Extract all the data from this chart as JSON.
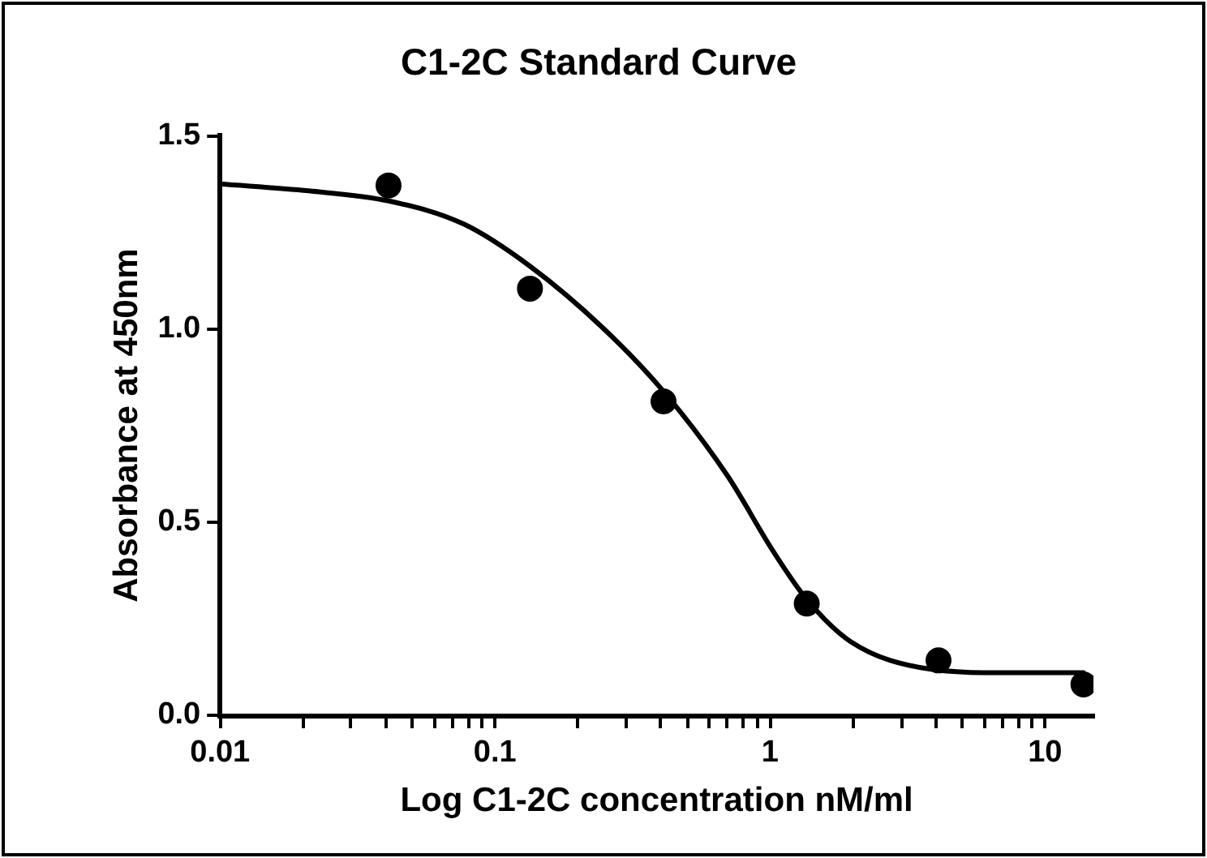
{
  "chart_data": {
    "type": "scatter",
    "title": "C1-2C Standard Curve",
    "xlabel": "Log C1-2C concentration nM/ml",
    "ylabel": "Absorbance at 450nm",
    "log": "x",
    "grid": false,
    "legend": false,
    "xlim": [
      0.01,
      15
    ],
    "xticks": [
      0.01,
      {
        "value": 0.02,
        "label": null
      },
      {
        "value": 0.03,
        "label": null
      },
      {
        "value": 0.04,
        "label": null
      },
      {
        "value": 0.05,
        "label": null
      },
      {
        "value": 0.06,
        "label": null
      },
      {
        "value": 0.07,
        "label": null
      },
      {
        "value": 0.08,
        "label": null
      },
      {
        "value": 0.09,
        "label": null
      },
      0.1,
      {
        "value": 0.2,
        "label": null
      },
      {
        "value": 0.3,
        "label": null
      },
      {
        "value": 0.4,
        "label": null
      },
      {
        "value": 0.5,
        "label": null
      },
      {
        "value": 0.6,
        "label": null
      },
      {
        "value": 0.7,
        "label": null
      },
      {
        "value": 0.8,
        "label": null
      },
      {
        "value": 0.9,
        "label": null
      },
      1,
      {
        "value": 2,
        "label": null
      },
      {
        "value": 3,
        "label": null
      },
      {
        "value": 4,
        "label": null
      },
      {
        "value": 5,
        "label": null
      },
      {
        "value": 6,
        "label": null
      },
      {
        "value": 7,
        "label": null
      },
      {
        "value": 8,
        "label": null
      },
      {
        "value": 9,
        "label": null
      },
      10
    ],
    "ylim": [
      0,
      1.5
    ],
    "yticks": [
      {
        "value": 0,
        "label": "0.0"
      },
      {
        "value": 0.5,
        "label": "0.5"
      },
      {
        "value": 1,
        "label": "1.0"
      },
      {
        "value": 1.5,
        "label": "1.5"
      }
    ],
    "series": [
      {
        "marker": "circle",
        "color": "#000000",
        "x": [
          0.041,
          0.134,
          0.41,
          1.36,
          4.1,
          13.8
        ],
        "values": [
          1.371,
          1.104,
          0.812,
          0.289,
          0.142,
          0.08
        ]
      },
      {
        "type": "line",
        "marker": "none",
        "line_style": "solid",
        "color": "#000000",
        "x": [
          0.01,
          0.021,
          0.041,
          0.077,
          0.134,
          0.247,
          0.41,
          0.7,
          1.03,
          1.36,
          1.97,
          3.77,
          7.2,
          13.8
        ],
        "values": [
          1.375,
          1.357,
          1.331,
          1.271,
          1.162,
          1.002,
          0.838,
          0.62,
          0.423,
          0.3,
          0.19,
          0.12,
          0.11,
          0.11
        ]
      }
    ]
  }
}
